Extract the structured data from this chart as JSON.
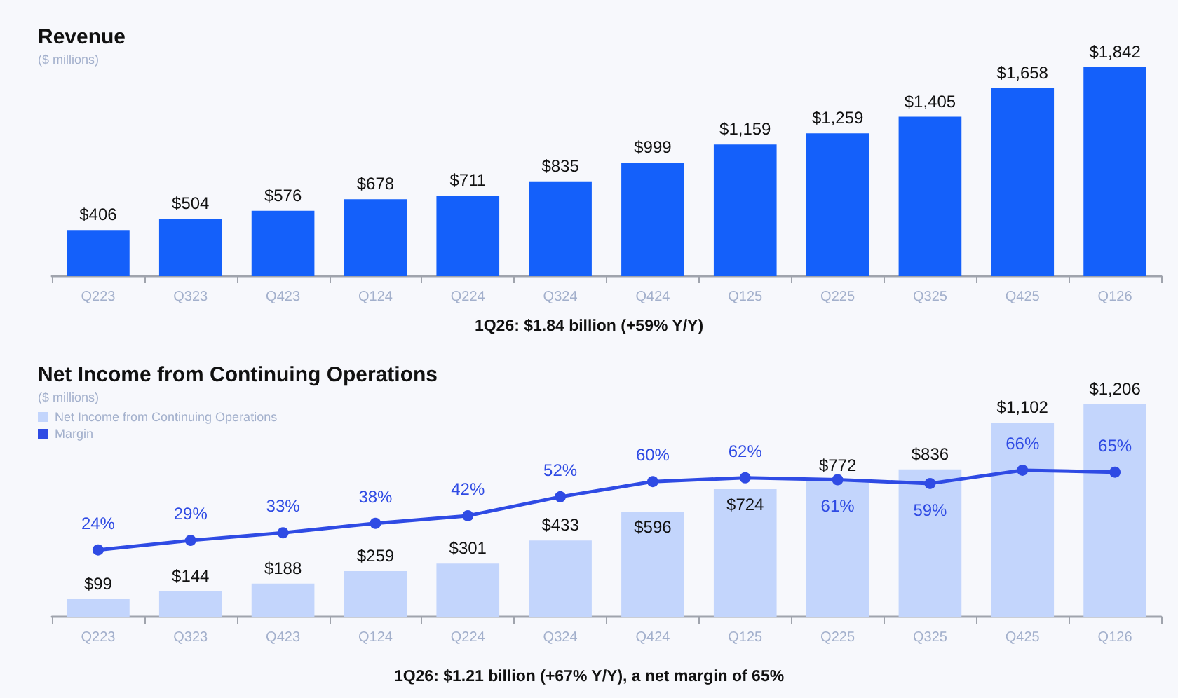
{
  "chart_data": [
    {
      "type": "bar",
      "title": "Revenue",
      "subtitle": "($ millions)",
      "annotations": [
        "1Q26: $1.84 billion (+59% Y/Y)"
      ],
      "tick_labels": "x",
      "categories": [
        "Q223",
        "Q323",
        "Q423",
        "Q124",
        "Q224",
        "Q324",
        "Q424",
        "Q125",
        "Q225",
        "Q325",
        "Q425",
        "Q126"
      ],
      "series": [
        {
          "color": "#1460fa",
          "values": [
            406,
            504,
            576,
            678,
            711,
            835,
            999,
            1159,
            1259,
            1405,
            1658,
            1842
          ],
          "value_labels": [
            "$406",
            "$504",
            "$576",
            "$678",
            "$711",
            "$835",
            "$999",
            "$1,159",
            "$1,259",
            "$1,405",
            "$1,658",
            "$1,842"
          ]
        }
      ]
    },
    {
      "type": "bar",
      "title": "Net Income from Continuing Operations",
      "subtitle": "($ millions)",
      "annotations": [
        "1Q26: $1.21 billion (+67% Y/Y), a net margin of 65%"
      ],
      "tick_labels": "x",
      "legend": "top left",
      "marker": "circle",
      "categories": [
        "Q223",
        "Q323",
        "Q423",
        "Q124",
        "Q224",
        "Q324",
        "Q424",
        "Q125",
        "Q225",
        "Q325",
        "Q425",
        "Q126"
      ],
      "series": [
        {
          "name": "Net Income from Continuing Operations",
          "color": "#c3d5fc",
          "values": [
            99,
            144,
            188,
            259,
            301,
            433,
            596,
            724,
            772,
            836,
            1102,
            1206
          ],
          "value_labels": [
            "$99",
            "$144",
            "$188",
            "$259",
            "$301",
            "$433",
            "$596",
            "$724",
            "$772",
            "$836",
            "$1,102",
            "$1,206"
          ]
        },
        {
          "name": "Margin",
          "type": "line",
          "axis": "y2",
          "color": "#2f4be4",
          "values": [
            24,
            29,
            33,
            38,
            42,
            52,
            60,
            62,
            61,
            59,
            66,
            65
          ],
          "value_labels": [
            "24%",
            "29%",
            "33%",
            "38%",
            "42%",
            "52%",
            "60%",
            "62%",
            "61%",
            "59%",
            "66%",
            "65%"
          ]
        }
      ]
    }
  ]
}
